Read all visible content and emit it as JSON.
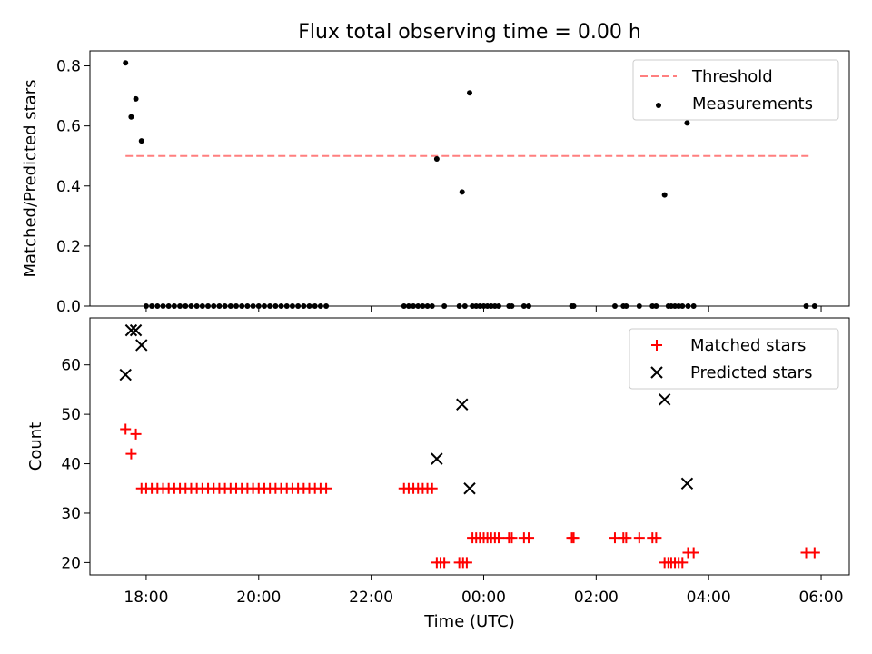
{
  "figure": {
    "title": "Flux total observing time = 0.00 h"
  },
  "chart_data": [
    {
      "type": "scatter",
      "ylabel": "Matched/Predicted stars",
      "ylim": [
        0,
        0.85
      ],
      "yticks": [
        0.0,
        0.2,
        0.4,
        0.6,
        0.8
      ],
      "ytick_labels": [
        "0.0",
        "0.2",
        "0.4",
        "0.6",
        "0.8"
      ],
      "legend_position": "top-right",
      "threshold": {
        "name": "Threshold",
        "value": 0.5,
        "x_range": [
          "17:38",
          "05:50"
        ],
        "color": "#ff7f7f",
        "style": "dashed"
      },
      "series": [
        {
          "name": "Measurements",
          "marker": "dot",
          "color": "#000000",
          "points": [
            [
              "17:38",
              0.81
            ],
            [
              "17:44",
              0.63
            ],
            [
              "17:49",
              0.69
            ],
            [
              "17:55",
              0.55
            ],
            [
              "18:00",
              0.0
            ],
            [
              "18:06",
              0.0
            ],
            [
              "18:12",
              0.0
            ],
            [
              "18:18",
              0.0
            ],
            [
              "18:24",
              0.0
            ],
            [
              "18:30",
              0.0
            ],
            [
              "18:36",
              0.0
            ],
            [
              "18:42",
              0.0
            ],
            [
              "18:48",
              0.0
            ],
            [
              "18:54",
              0.0
            ],
            [
              "19:00",
              0.0
            ],
            [
              "19:06",
              0.0
            ],
            [
              "19:12",
              0.0
            ],
            [
              "19:18",
              0.0
            ],
            [
              "19:24",
              0.0
            ],
            [
              "19:30",
              0.0
            ],
            [
              "19:36",
              0.0
            ],
            [
              "19:42",
              0.0
            ],
            [
              "19:48",
              0.0
            ],
            [
              "19:54",
              0.0
            ],
            [
              "20:00",
              0.0
            ],
            [
              "20:06",
              0.0
            ],
            [
              "20:12",
              0.0
            ],
            [
              "20:18",
              0.0
            ],
            [
              "20:24",
              0.0
            ],
            [
              "20:30",
              0.0
            ],
            [
              "20:36",
              0.0
            ],
            [
              "20:42",
              0.0
            ],
            [
              "20:48",
              0.0
            ],
            [
              "20:54",
              0.0
            ],
            [
              "21:00",
              0.0
            ],
            [
              "21:06",
              0.0
            ],
            [
              "21:12",
              0.0
            ],
            [
              "22:35",
              0.0
            ],
            [
              "22:40",
              0.0
            ],
            [
              "22:45",
              0.0
            ],
            [
              "22:50",
              0.0
            ],
            [
              "22:55",
              0.0
            ],
            [
              "23:00",
              0.0
            ],
            [
              "23:05",
              0.0
            ],
            [
              "23:10",
              0.49
            ],
            [
              "23:18",
              0.0
            ],
            [
              "23:34",
              0.0
            ],
            [
              "23:37",
              0.38
            ],
            [
              "23:40",
              0.0
            ],
            [
              "23:45",
              0.71
            ],
            [
              "23:48",
              0.0
            ],
            [
              "23:52",
              0.0
            ],
            [
              "23:56",
              0.0
            ],
            [
              "00:00",
              0.0
            ],
            [
              "00:04",
              0.0
            ],
            [
              "00:08",
              0.0
            ],
            [
              "00:12",
              0.0
            ],
            [
              "00:16",
              0.0
            ],
            [
              "00:27",
              0.0
            ],
            [
              "00:30",
              0.0
            ],
            [
              "00:43",
              0.0
            ],
            [
              "00:48",
              0.0
            ],
            [
              "01:34",
              0.0
            ],
            [
              "01:36",
              0.0
            ],
            [
              "02:20",
              0.0
            ],
            [
              "02:29",
              0.0
            ],
            [
              "02:32",
              0.0
            ],
            [
              "02:46",
              0.0
            ],
            [
              "03:00",
              0.0
            ],
            [
              "03:04",
              0.0
            ],
            [
              "03:13",
              0.37
            ],
            [
              "03:17",
              0.0
            ],
            [
              "03:20",
              0.0
            ],
            [
              "03:24",
              0.0
            ],
            [
              "03:28",
              0.0
            ],
            [
              "03:32",
              0.0
            ],
            [
              "03:37",
              0.61
            ],
            [
              "03:38",
              0.0
            ],
            [
              "03:44",
              0.0
            ],
            [
              "05:44",
              0.0
            ],
            [
              "05:53",
              0.0
            ]
          ]
        }
      ]
    },
    {
      "type": "scatter",
      "xlabel": "Time (UTC)",
      "ylabel": "Count",
      "ylim": [
        17.5,
        69.5
      ],
      "yticks": [
        20,
        30,
        40,
        50,
        60
      ],
      "ytick_labels": [
        "20",
        "30",
        "40",
        "50",
        "60"
      ],
      "x_range": [
        "17:00",
        "06:30"
      ],
      "xticks": [
        "18:00",
        "20:00",
        "22:00",
        "00:00",
        "02:00",
        "04:00",
        "06:00"
      ],
      "legend_position": "top-right",
      "series": [
        {
          "name": "Matched stars",
          "marker": "plus",
          "color": "#ff0000",
          "points": [
            [
              "17:38",
              47
            ],
            [
              "17:44",
              42
            ],
            [
              "17:49",
              46
            ],
            [
              "17:55",
              35
            ],
            [
              "18:00",
              35
            ],
            [
              "18:06",
              35
            ],
            [
              "18:12",
              35
            ],
            [
              "18:18",
              35
            ],
            [
              "18:24",
              35
            ],
            [
              "18:30",
              35
            ],
            [
              "18:36",
              35
            ],
            [
              "18:42",
              35
            ],
            [
              "18:48",
              35
            ],
            [
              "18:54",
              35
            ],
            [
              "19:00",
              35
            ],
            [
              "19:06",
              35
            ],
            [
              "19:12",
              35
            ],
            [
              "19:18",
              35
            ],
            [
              "19:24",
              35
            ],
            [
              "19:30",
              35
            ],
            [
              "19:36",
              35
            ],
            [
              "19:42",
              35
            ],
            [
              "19:48",
              35
            ],
            [
              "19:54",
              35
            ],
            [
              "20:00",
              35
            ],
            [
              "20:06",
              35
            ],
            [
              "20:12",
              35
            ],
            [
              "20:18",
              35
            ],
            [
              "20:24",
              35
            ],
            [
              "20:30",
              35
            ],
            [
              "20:36",
              35
            ],
            [
              "20:42",
              35
            ],
            [
              "20:48",
              35
            ],
            [
              "20:54",
              35
            ],
            [
              "21:00",
              35
            ],
            [
              "21:06",
              35
            ],
            [
              "21:12",
              35
            ],
            [
              "22:35",
              35
            ],
            [
              "22:40",
              35
            ],
            [
              "22:45",
              35
            ],
            [
              "22:50",
              35
            ],
            [
              "22:55",
              35
            ],
            [
              "23:00",
              35
            ],
            [
              "23:05",
              35
            ],
            [
              "23:10",
              20
            ],
            [
              "23:14",
              20
            ],
            [
              "23:18",
              20
            ],
            [
              "23:34",
              20
            ],
            [
              "23:38",
              20
            ],
            [
              "23:42",
              20
            ],
            [
              "23:48",
              25
            ],
            [
              "23:52",
              25
            ],
            [
              "23:56",
              25
            ],
            [
              "00:00",
              25
            ],
            [
              "00:04",
              25
            ],
            [
              "00:08",
              25
            ],
            [
              "00:12",
              25
            ],
            [
              "00:16",
              25
            ],
            [
              "00:27",
              25
            ],
            [
              "00:30",
              25
            ],
            [
              "00:43",
              25
            ],
            [
              "00:48",
              25
            ],
            [
              "01:34",
              25
            ],
            [
              "01:36",
              25
            ],
            [
              "02:20",
              25
            ],
            [
              "02:29",
              25
            ],
            [
              "02:32",
              25
            ],
            [
              "02:46",
              25
            ],
            [
              "03:00",
              25
            ],
            [
              "03:04",
              25
            ],
            [
              "03:13",
              20
            ],
            [
              "03:17",
              20
            ],
            [
              "03:20",
              20
            ],
            [
              "03:24",
              20
            ],
            [
              "03:28",
              20
            ],
            [
              "03:32",
              20
            ],
            [
              "03:38",
              22
            ],
            [
              "03:44",
              22
            ],
            [
              "05:44",
              22
            ],
            [
              "05:53",
              22
            ]
          ]
        },
        {
          "name": "Predicted stars",
          "marker": "x",
          "color": "#000000",
          "points": [
            [
              "17:38",
              58
            ],
            [
              "17:44",
              67
            ],
            [
              "17:49",
              67
            ],
            [
              "17:55",
              64
            ],
            [
              "23:10",
              41
            ],
            [
              "23:37",
              52
            ],
            [
              "23:45",
              35
            ],
            [
              "03:13",
              53
            ],
            [
              "03:37",
              36
            ]
          ]
        }
      ]
    }
  ]
}
